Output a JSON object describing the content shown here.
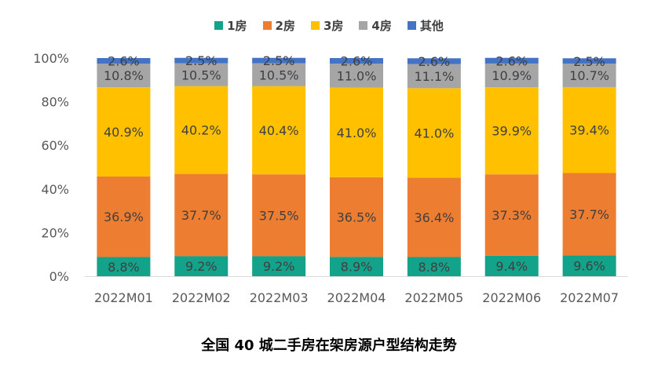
{
  "chart_data": {
    "type": "bar",
    "stacked": true,
    "percent": true,
    "categories": [
      "2022M01",
      "2022M02",
      "2022M03",
      "2022M04",
      "2022M05",
      "2022M06",
      "2022M07"
    ],
    "series": [
      {
        "name": "1房",
        "color": "#13A28A",
        "values": [
          8.8,
          9.2,
          9.2,
          8.9,
          8.8,
          9.4,
          9.6
        ],
        "labels": [
          "8.8%",
          "9.2%",
          "9.2%",
          "8.9%",
          "8.8%",
          "9.4%",
          "9.6%"
        ]
      },
      {
        "name": "2房",
        "color": "#ED7D31",
        "values": [
          36.9,
          37.7,
          37.5,
          36.5,
          36.4,
          37.3,
          37.7
        ],
        "labels": [
          "36.9%",
          "37.7%",
          "37.5%",
          "36.5%",
          "36.4%",
          "37.3%",
          "37.7%"
        ]
      },
      {
        "name": "3房",
        "color": "#FFC000",
        "values": [
          40.9,
          40.2,
          40.4,
          41.0,
          41.0,
          39.9,
          39.4
        ],
        "labels": [
          "40.9%",
          "40.2%",
          "40.4%",
          "41.0%",
          "41.0%",
          "39.9%",
          "39.4%"
        ]
      },
      {
        "name": "4房",
        "color": "#A5A5A5",
        "values": [
          10.8,
          10.5,
          10.5,
          11.0,
          11.1,
          10.9,
          10.7
        ],
        "labels": [
          "10.8%",
          "10.5%",
          "10.5%",
          "11.0%",
          "11.1%",
          "10.9%",
          "10.7%"
        ]
      },
      {
        "name": "其他",
        "color": "#4472C4",
        "values": [
          2.6,
          2.5,
          2.5,
          2.6,
          2.6,
          2.6,
          2.5
        ],
        "labels": [
          "2.6%",
          "2.5%",
          "2.5%",
          "2.6%",
          "2.6%",
          "2.6%",
          "2.5%"
        ]
      }
    ],
    "ylim": [
      0,
      100
    ],
    "yticks": [
      0,
      20,
      40,
      60,
      80,
      100
    ],
    "ytick_labels": [
      "0%",
      "20%",
      "40%",
      "60%",
      "80%",
      "100%"
    ],
    "legend_position": "top-center",
    "title": "全国 40 城二手房在架房源户型结构走势"
  }
}
